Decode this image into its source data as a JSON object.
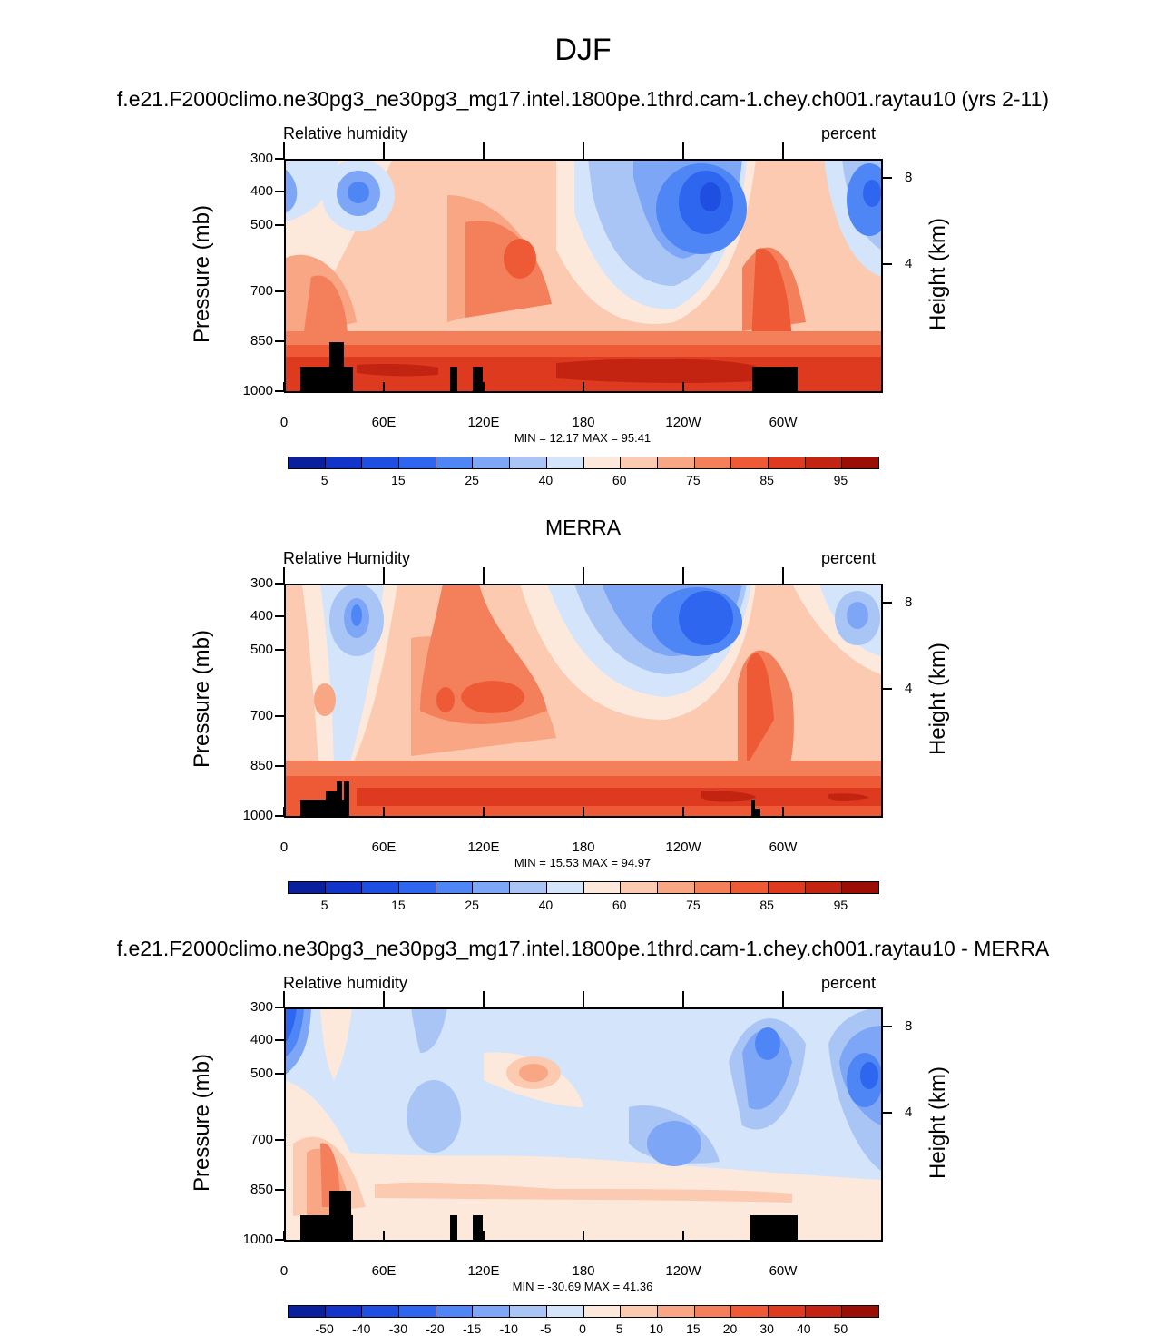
{
  "title": "DJF",
  "panel_titles": {
    "model": "f.e21.F2000climo.ne30pg3_ne30pg3_mg17.intel.1800pe.1thrd.cam-1.chey.ch001.raytau10 (yrs 2-11)",
    "obs": "MERRA",
    "diff": "f.e21.F2000climo.ne30pg3_ne30pg3_mg17.intel.1800pe.1thrd.cam-1.chey.ch001.raytau10 - MERRA"
  },
  "axis_text": {
    "y_left": "Pressure (mb)",
    "y_right": "Height (km)",
    "y_ticks": [
      "300",
      "400",
      "500",
      "700",
      "850",
      "1000"
    ],
    "y_right_ticks": [
      "8",
      "4"
    ],
    "x_ticks": [
      "0",
      "60E",
      "120E",
      "180",
      "120W",
      "60W"
    ]
  },
  "colors": {
    "abs_palette": [
      "#0a1f9c",
      "#1234c8",
      "#1f4fe0",
      "#2e66f0",
      "#4f86f5",
      "#7ea6f7",
      "#a9c5f6",
      "#d3e4fb",
      "#fde9dc",
      "#fbcab1",
      "#f8a684",
      "#f4805b",
      "#ee5a36",
      "#de3a1f",
      "#c22411",
      "#9a0e06"
    ],
    "abs_labels": [
      "5",
      "15",
      "25",
      "40",
      "60",
      "75",
      "85",
      "95"
    ],
    "diff_palette": [
      "#0a1f9c",
      "#1234c8",
      "#1f4fe0",
      "#2e66f0",
      "#4f86f5",
      "#7ea6f7",
      "#a9c5f6",
      "#d3e4fb",
      "#fde9dc",
      "#fbcab1",
      "#f8a684",
      "#f4805b",
      "#ee5a36",
      "#de3a1f",
      "#c22411",
      "#9a0e06"
    ],
    "diff_labels": [
      "-50",
      "-40",
      "-30",
      "-20",
      "-15",
      "-10",
      "-5",
      "0",
      "5",
      "10",
      "15",
      "20",
      "30",
      "40",
      "50"
    ],
    "terrain": "#000000"
  },
  "chart_data": [
    {
      "type": "heatmap",
      "title": "f.e21.F2000climo.ne30pg3_ne30pg3_mg17.intel.1800pe.1thrd.cam-1.chey.ch001.raytau10 (yrs 2-11)",
      "left_label": "Relative humidity",
      "right_label": "percent",
      "xlabel": "",
      "ylabel": "Pressure (mb)",
      "ylabel_right": "Height (km)",
      "min_text": "MIN =  12.17  MAX =  95.41",
      "levels": [
        5,
        10,
        15,
        20,
        25,
        30,
        40,
        50,
        60,
        65,
        75,
        80,
        85,
        90,
        95
      ],
      "xlim": [
        0,
        360
      ],
      "ylim": [
        1000,
        300
      ],
      "y_scale": "log"
    },
    {
      "type": "heatmap",
      "title": "MERRA",
      "left_label": "Relative Humidity",
      "right_label": "percent",
      "xlabel": "",
      "ylabel": "Pressure (mb)",
      "ylabel_right": "Height (km)",
      "min_text": "MIN =  15.53  MAX =  94.97",
      "levels": [
        5,
        10,
        15,
        20,
        25,
        30,
        40,
        50,
        60,
        65,
        75,
        80,
        85,
        90,
        95
      ],
      "xlim": [
        0,
        360
      ],
      "ylim": [
        1000,
        300
      ],
      "y_scale": "log"
    },
    {
      "type": "heatmap",
      "title": "f.e21.F2000climo.ne30pg3_ne30pg3_mg17.intel.1800pe.1thrd.cam-1.chey.ch001.raytau10 - MERRA",
      "left_label": "Relative humidity",
      "right_label": "percent",
      "xlabel": "",
      "ylabel": "Pressure (mb)",
      "ylabel_right": "Height (km)",
      "min_text": "MIN = -30.69  MAX =  41.36",
      "levels": [
        -50,
        -40,
        -30,
        -20,
        -15,
        -10,
        -5,
        0,
        5,
        10,
        15,
        20,
        30,
        40,
        50
      ],
      "xlim": [
        0,
        360
      ],
      "ylim": [
        1000,
        300
      ],
      "y_scale": "log"
    }
  ]
}
